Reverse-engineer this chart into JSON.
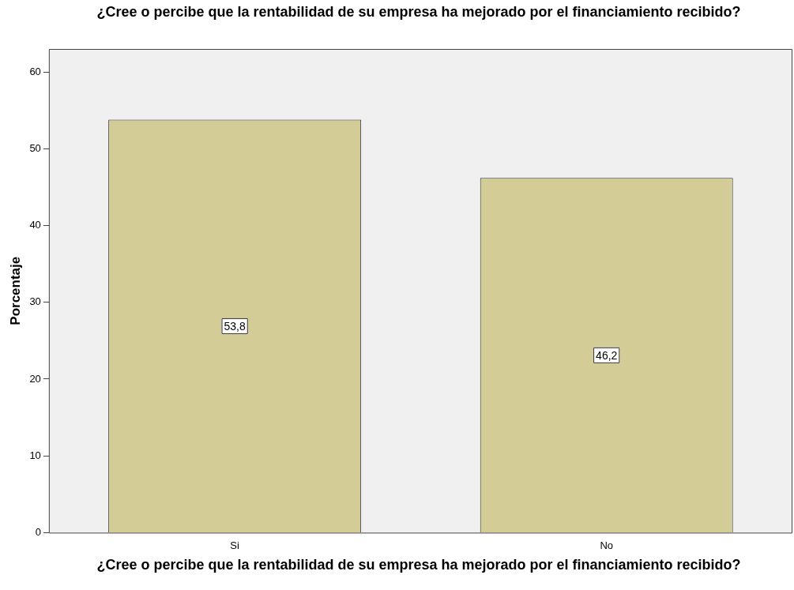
{
  "chart_data": {
    "type": "bar",
    "title": "¿Cree o percibe que la rentabilidad de su empresa ha mejorado por el financiamiento recibido?",
    "xlabel": "¿Cree o percibe que la rentabilidad de su empresa ha mejorado por el financiamiento recibido?",
    "ylabel": "Porcentaje",
    "categories": [
      "Si",
      "No"
    ],
    "values": [
      53.8,
      46.2
    ],
    "value_labels": [
      "53,8",
      "46,2"
    ],
    "color": "#d3cc96",
    "ylim": [
      0,
      63
    ],
    "yticks": [
      0,
      10,
      20,
      30,
      40,
      50,
      60
    ],
    "grid": false,
    "legend": false
  }
}
